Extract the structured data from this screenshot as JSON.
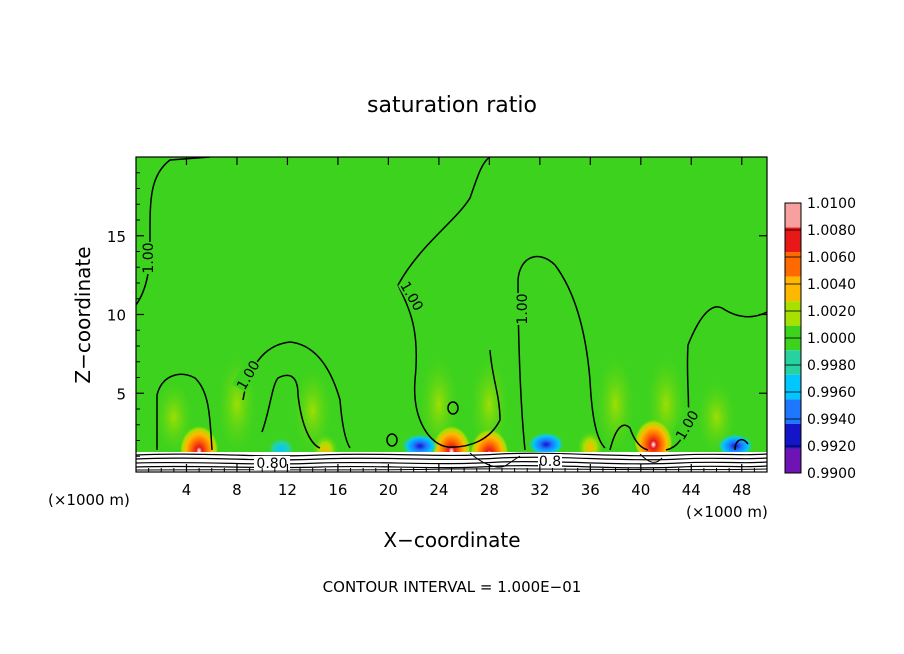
{
  "chart_data": {
    "type": "heatmap",
    "title": "saturation ratio",
    "xlabel": "X−coordinate",
    "ylabel": "Z−coordinate",
    "x_unit_left": "(×1000 m)",
    "x_unit_right": "(×1000 m)",
    "xlim": [
      0,
      50
    ],
    "ylim": [
      0,
      20
    ],
    "x_ticks": [
      4,
      8,
      12,
      16,
      20,
      24,
      28,
      32,
      36,
      40,
      44,
      48
    ],
    "y_ticks": [
      5,
      10,
      15
    ],
    "footer": "CONTOUR INTERVAL = 1.000E−01",
    "colorbar": {
      "levels": [
        1.01,
        1.008,
        1.006,
        1.004,
        1.002,
        1.0,
        0.998,
        0.996,
        0.994,
        0.992,
        0.99
      ],
      "labels": [
        "1.0100",
        "1.0080",
        "1.0060",
        "1.0040",
        "1.0020",
        "1.0000",
        "0.9980",
        "0.9960",
        "0.9940",
        "0.9920",
        "0.9900"
      ],
      "colors": [
        "#f7a0a0",
        "#e81818",
        "#ff6a00",
        "#ffb800",
        "#a8e000",
        "#3cd21e",
        "#28d2a0",
        "#00c8ff",
        "#1e78ff",
        "#1414c8",
        "#6e14b4"
      ]
    },
    "contour_labels": [
      "1.00",
      "1.00",
      "1.00",
      "1.00",
      "1.00",
      "0.80",
      "0.8"
    ],
    "background_value": 1.0,
    "hotspots": [
      {
        "x": 5.0,
        "z": 2.0,
        "value": 1.0085
      },
      {
        "x": 15.0,
        "z": 1.8,
        "value": 1.005
      },
      {
        "x": 25.0,
        "z": 2.0,
        "value": 1.007
      },
      {
        "x": 28.0,
        "z": 1.8,
        "value": 1.008
      },
      {
        "x": 41.0,
        "z": 2.4,
        "value": 1.0075
      },
      {
        "x": 36.0,
        "z": 2.0,
        "value": 1.004
      }
    ],
    "coldspots": [
      {
        "x": 11.5,
        "z": 1.6,
        "value": 0.9965
      },
      {
        "x": 22.5,
        "z": 1.8,
        "value": 0.994
      },
      {
        "x": 32.5,
        "z": 1.9,
        "value": 0.992
      },
      {
        "x": 47.5,
        "z": 1.8,
        "value": 0.994
      }
    ]
  }
}
